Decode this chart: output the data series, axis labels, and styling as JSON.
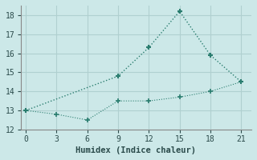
{
  "line1_x": [
    0,
    9,
    12,
    15,
    18,
    21
  ],
  "line1_y": [
    13.0,
    14.8,
    16.3,
    18.2,
    15.9,
    14.5
  ],
  "line2_x": [
    0,
    3,
    6,
    9,
    12,
    15,
    18,
    21
  ],
  "line2_y": [
    13.0,
    12.8,
    12.5,
    13.5,
    13.5,
    13.7,
    14.0,
    14.5
  ],
  "line_color": "#2a7d6f",
  "background_color": "#cce8e8",
  "grid_color": "#b0d0d0",
  "xlabel": "Humidex (Indice chaleur)",
  "xlim": [
    -0.5,
    22
  ],
  "ylim": [
    12,
    18.5
  ],
  "xticks": [
    0,
    3,
    6,
    9,
    12,
    15,
    18,
    21
  ],
  "yticks": [
    12,
    13,
    14,
    15,
    16,
    17,
    18
  ],
  "xlabel_fontsize": 7.5,
  "tick_fontsize": 7
}
